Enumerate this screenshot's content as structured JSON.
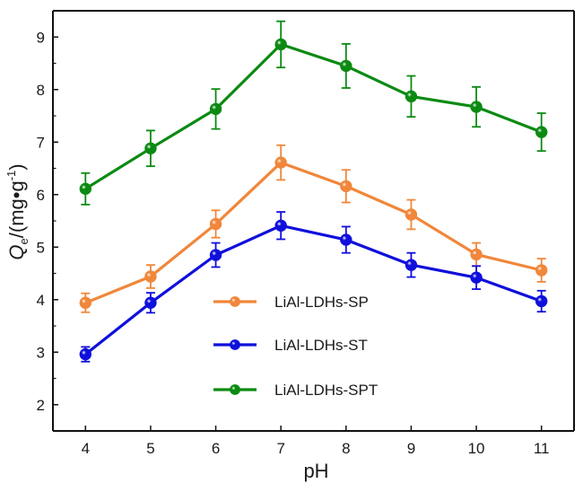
{
  "chart_data": {
    "type": "line",
    "title": "",
    "xlabel": "pH",
    "ylabel": {
      "main": "Q",
      "sub": "e",
      "unit": "/(mg•g",
      "sup": "-1",
      "close": ")"
    },
    "xlim": [
      3.5,
      11.5
    ],
    "ylim": [
      1.5,
      9.5
    ],
    "x_ticks": [
      4,
      5,
      6,
      7,
      8,
      9,
      10,
      11
    ],
    "y_ticks": [
      2,
      3,
      4,
      5,
      6,
      7,
      8,
      9
    ],
    "y_minor_ticks": [
      2.5,
      3.5,
      4.5,
      5.5,
      6.5,
      7.5,
      8.5
    ],
    "grid": false,
    "legend_position": "center-bottom",
    "x": [
      4,
      5,
      6,
      7,
      8,
      9,
      10,
      11
    ],
    "series": [
      {
        "name": "LiAl-LDHs-SP",
        "color": "#f0873a",
        "values": [
          3.94,
          4.44,
          5.44,
          6.61,
          6.16,
          5.62,
          4.86,
          4.56
        ],
        "errors": [
          0.18,
          0.22,
          0.26,
          0.33,
          0.31,
          0.28,
          0.22,
          0.22
        ]
      },
      {
        "name": "LiAl-LDHs-ST",
        "color": "#0f0fdc",
        "values": [
          2.96,
          3.94,
          4.85,
          5.41,
          5.14,
          4.66,
          4.42,
          3.97
        ],
        "errors": [
          0.14,
          0.19,
          0.23,
          0.26,
          0.25,
          0.23,
          0.22,
          0.2
        ]
      },
      {
        "name": "LiAl-LDHs-SPT",
        "color": "#0b8a12",
        "values": [
          6.11,
          6.88,
          7.63,
          8.86,
          8.45,
          7.87,
          7.67,
          7.19
        ],
        "errors": [
          0.3,
          0.34,
          0.38,
          0.44,
          0.42,
          0.39,
          0.38,
          0.36
        ]
      }
    ]
  }
}
